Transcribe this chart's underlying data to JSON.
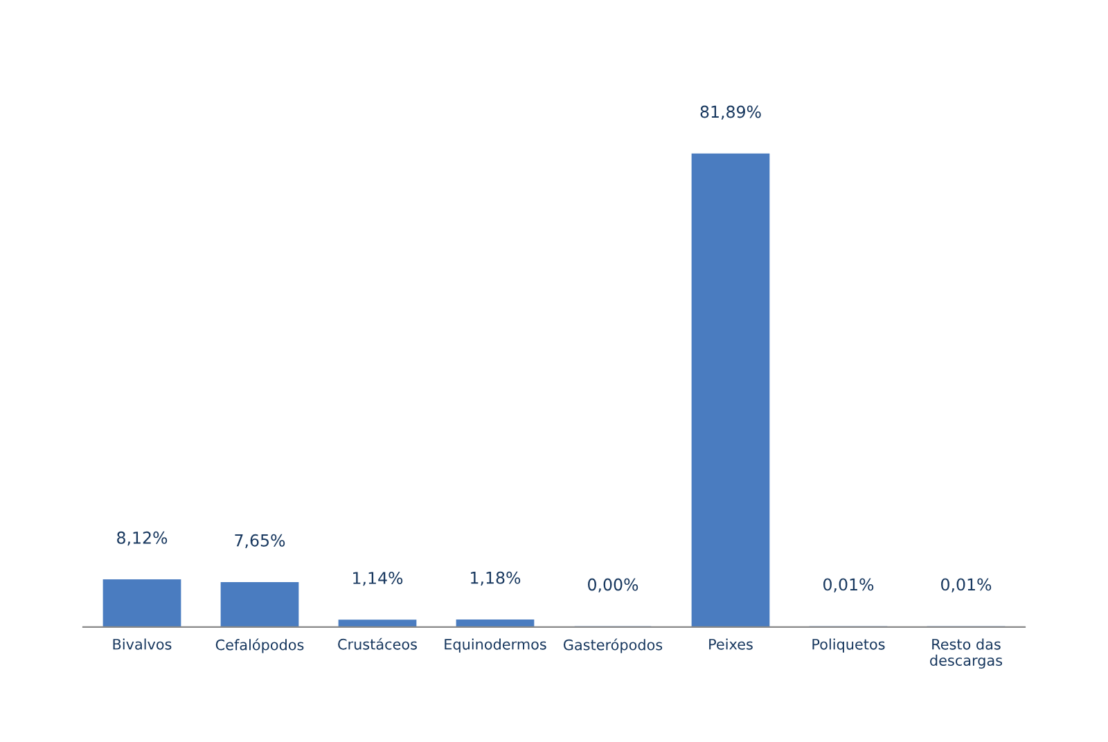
{
  "chart_data": {
    "type": "bar",
    "categories": [
      "Bivalvos",
      "Cefalópodos",
      "Crustáceos",
      "Equinodermos",
      "Gasterópodos",
      "Peixes",
      "Poliquetos",
      "Resto das\ndescargas"
    ],
    "values": [
      8.12,
      7.65,
      1.14,
      1.18,
      0.0,
      81.89,
      0.01,
      0.01
    ],
    "value_labels": [
      "8,12%",
      "7,65%",
      "1,14%",
      "1,18%",
      "0,00%",
      "81,89%",
      "0,01%",
      "0,01%"
    ],
    "color": "#4a7cc0",
    "grid": false,
    "legend": false
  }
}
